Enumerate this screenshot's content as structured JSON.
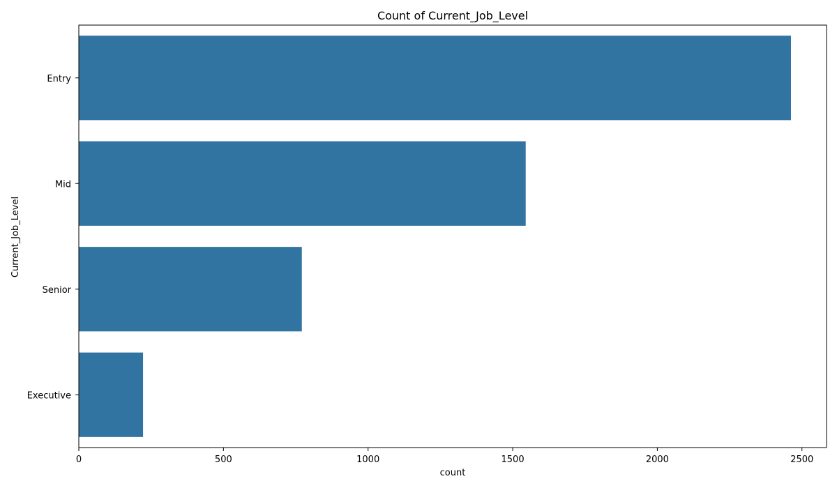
{
  "chart_data": {
    "type": "bar",
    "orientation": "horizontal",
    "title": "Count of Current_Job_Level",
    "xlabel": "count",
    "ylabel": "Current_Job_Level",
    "categories": [
      "Entry",
      "Mid",
      "Senior",
      "Executive"
    ],
    "values": [
      2462,
      1545,
      771,
      222
    ],
    "xlim": [
      0,
      2585
    ],
    "xticks": [
      0,
      500,
      1000,
      1500,
      2000,
      2500
    ],
    "bar_color": "#3274a1",
    "grid": false,
    "legend": "none"
  }
}
